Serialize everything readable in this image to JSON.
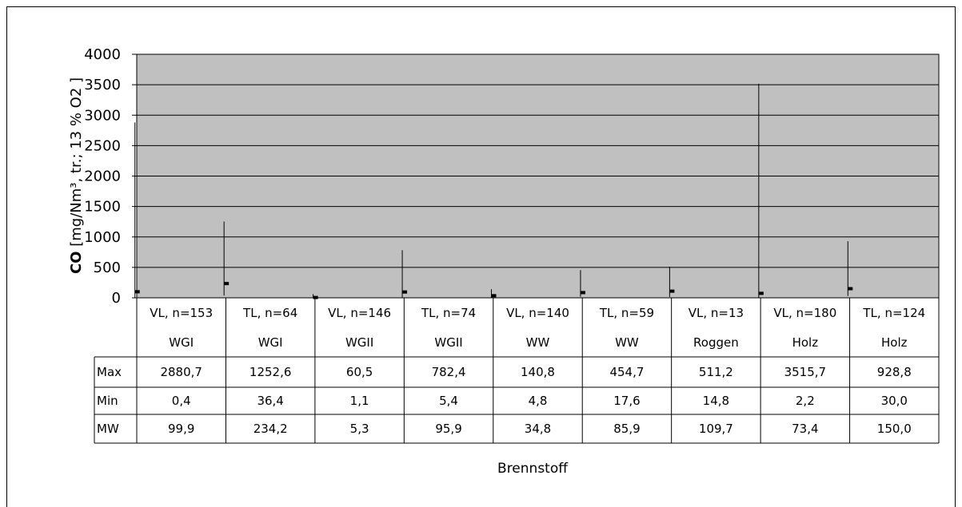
{
  "chart_data": {
    "type": "bar",
    "subtype": "high-low-mean",
    "title": "",
    "xlabel": "Brennstoff",
    "ylabel_bold": "CO",
    "ylabel_rest": " [mg/Nm³, tr.; 13 % O2 ]",
    "ylim": [
      0,
      4000
    ],
    "yticks": [
      0,
      500,
      1000,
      1500,
      2000,
      2500,
      3000,
      3500,
      4000
    ],
    "grid": true,
    "plot_background": "#c0c0c0",
    "categories": [
      {
        "line1": "VL, n=153",
        "line2": "WGI"
      },
      {
        "line1": "TL, n=64",
        "line2": "WGI"
      },
      {
        "line1": "VL, n=146",
        "line2": "WGII"
      },
      {
        "line1": "TL, n=74",
        "line2": "WGII"
      },
      {
        "line1": "VL, n=140",
        "line2": "WW"
      },
      {
        "line1": "TL, n=59",
        "line2": "WW"
      },
      {
        "line1": "VL, n=13",
        "line2": "Roggen"
      },
      {
        "line1": "VL, n=180",
        "line2": "Holz"
      },
      {
        "line1": "TL, n=124",
        "line2": "Holz"
      }
    ],
    "series": [
      {
        "name": "Max",
        "values": [
          2880.7,
          1252.6,
          60.5,
          782.4,
          140.8,
          454.7,
          511.2,
          3515.7,
          928.8
        ],
        "labels": [
          "2880,7",
          "1252,6",
          "60,5",
          "782,4",
          "140,8",
          "454,7",
          "511,2",
          "3515,7",
          "928,8"
        ]
      },
      {
        "name": "Min",
        "values": [
          0.4,
          36.4,
          1.1,
          5.4,
          4.8,
          17.6,
          14.8,
          2.2,
          30.0
        ],
        "labels": [
          "0,4",
          "36,4",
          "1,1",
          "5,4",
          "4,8",
          "17,6",
          "14,8",
          "2,2",
          "30,0"
        ]
      },
      {
        "name": "MW",
        "values": [
          99.9,
          234.2,
          5.3,
          95.9,
          34.8,
          85.9,
          109.7,
          73.4,
          150.0
        ],
        "labels": [
          "99,9",
          "234,2",
          "5,3",
          "95,9",
          "34,8",
          "85,9",
          "109,7",
          "73,4",
          "150,0"
        ]
      }
    ]
  }
}
